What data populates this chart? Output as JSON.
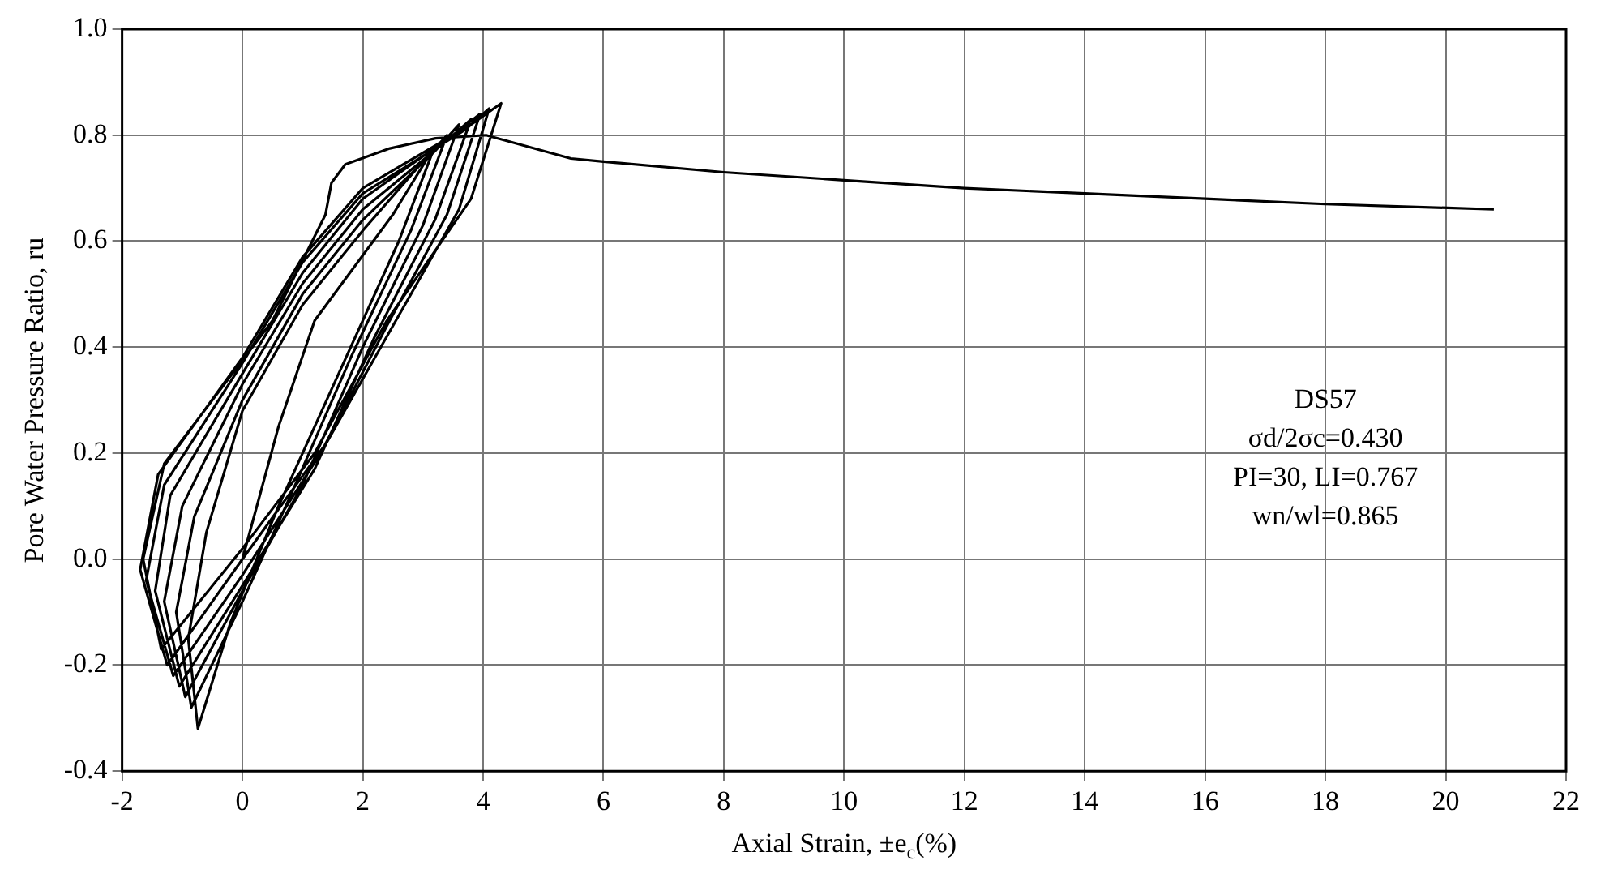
{
  "chart_data": {
    "type": "line",
    "xlabel": "Axial Strain, ±e$_{c}$(%)",
    "ylabel": "Pore Water Pressure Ratio, ru",
    "annotations": [
      "DS57",
      "σd/2σc=0.430",
      "PI=30, LI=0.767",
      "wn/wl=0.865"
    ],
    "xlim": [
      -2,
      22
    ],
    "xticks": [
      -2,
      0,
      2,
      4,
      6,
      8,
      10,
      12,
      14,
      16,
      18,
      20,
      22
    ],
    "ylim": [
      -0.4,
      1.0
    ],
    "yticks": [
      {
        "value": -0.4,
        "label": "-0.4"
      },
      {
        "value": -0.2,
        "label": "-0.2"
      },
      {
        "value": 0,
        "label": "0.0"
      },
      {
        "value": 0.2,
        "label": "0.2"
      },
      {
        "value": 0.4,
        "label": "0.4"
      },
      {
        "value": 0.6,
        "label": "0.6"
      },
      {
        "value": 0.8,
        "label": "0.8"
      },
      {
        "value": 1.0,
        "label": "1.0"
      }
    ],
    "grid": true,
    "legend": false,
    "marker": "none",
    "line_style": "solid",
    "series": [
      {
        "color": "#000000",
        "x": [
          0,
          0.6,
          1.2,
          2.5,
          3.2,
          2.6,
          1.6,
          0.6,
          -0.2,
          -0.74,
          -0.9,
          -0.6,
          0,
          1,
          2,
          3,
          3.4,
          2.8,
          1.8,
          0.8,
          0,
          -0.85,
          -1.1,
          -0.8,
          0,
          1,
          2,
          3.2,
          3.6,
          3.0,
          2.0,
          1.0,
          0,
          -0.95,
          -1.3,
          -1,
          0,
          1,
          2,
          3.4,
          3.8,
          3.2,
          2.2,
          1.2,
          0,
          -1.05,
          -1.45,
          -1.2,
          0,
          1,
          2,
          3.5,
          3.95,
          3.4,
          2.4,
          1.3,
          0,
          -1.15,
          -1.6,
          -1.3,
          0,
          1,
          2,
          3.7,
          4.1,
          3.6,
          2.6,
          1.4,
          0,
          -1.25,
          -1.7,
          -1.4,
          0,
          1,
          2,
          3.8,
          4.3,
          3.8,
          2.4,
          1.2,
          0,
          -1.35,
          -1.65,
          -1.3,
          -0.5,
          0.5,
          1.38,
          1.48,
          1.71,
          2.45,
          3.21,
          4.05,
          5.46,
          6,
          8,
          10,
          12,
          14,
          16,
          18,
          20.8
        ],
        "values": [
          0,
          0.25,
          0.45,
          0.65,
          0.78,
          0.6,
          0.35,
          0.1,
          -0.12,
          -0.32,
          -0.15,
          0.05,
          0.28,
          0.48,
          0.62,
          0.75,
          0.8,
          0.62,
          0.38,
          0.12,
          -0.08,
          -0.28,
          -0.1,
          0.08,
          0.3,
          0.5,
          0.64,
          0.77,
          0.82,
          0.63,
          0.4,
          0.14,
          -0.06,
          -0.26,
          -0.08,
          0.1,
          0.33,
          0.52,
          0.66,
          0.79,
          0.83,
          0.64,
          0.42,
          0.17,
          -0.05,
          -0.24,
          -0.06,
          0.12,
          0.35,
          0.54,
          0.68,
          0.8,
          0.84,
          0.65,
          0.44,
          0.2,
          -0.03,
          -0.22,
          -0.04,
          0.14,
          0.37,
          0.56,
          0.69,
          0.81,
          0.85,
          0.66,
          0.46,
          0.22,
          0,
          -0.2,
          -0.02,
          0.16,
          0.38,
          0.57,
          0.7,
          0.82,
          0.86,
          0.68,
          0.45,
          0.2,
          0.02,
          -0.17,
          0,
          0.18,
          0.3,
          0.45,
          0.65,
          0.71,
          0.745,
          0.775,
          0.794,
          0.8,
          0.756,
          0.75,
          0.73,
          0.715,
          0.7,
          0.69,
          0.68,
          0.67,
          0.66
        ]
      }
    ]
  }
}
